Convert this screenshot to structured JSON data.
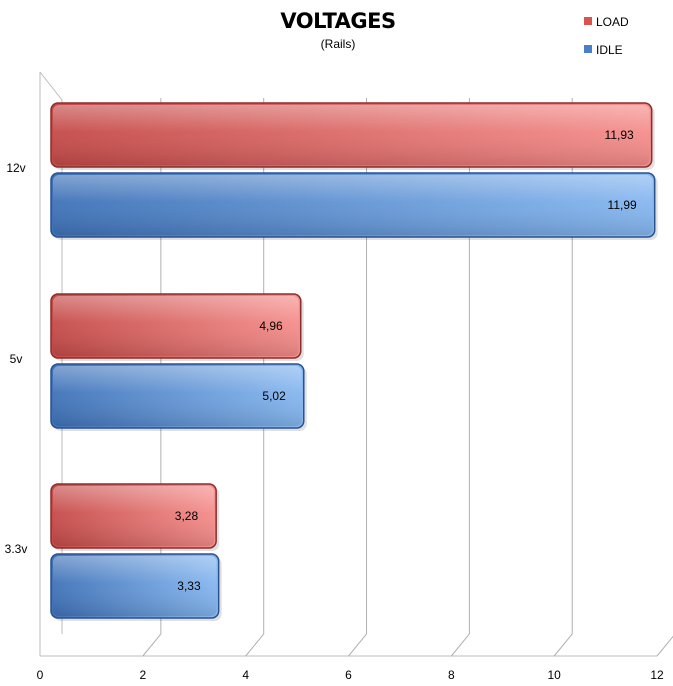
{
  "chart_data": {
    "type": "bar",
    "orientation": "horizontal",
    "title": "VOLTAGES",
    "subtitle": "(Rails)",
    "categories": [
      "12v",
      "5v",
      "3.3v"
    ],
    "series": [
      {
        "name": "LOAD",
        "color": "#d9534f",
        "values": [
          11.93,
          4.96,
          3.28
        ],
        "labels": [
          "11,93",
          "4,96",
          "3,28"
        ]
      },
      {
        "name": "IDLE",
        "color": "#4a7fc9",
        "values": [
          11.99,
          5.02,
          3.33
        ],
        "labels": [
          "11,99",
          "5,02",
          "3,33"
        ]
      }
    ],
    "xlim": [
      0,
      12
    ],
    "xticks": [
      "0",
      "2",
      "4",
      "6",
      "8",
      "10",
      "12"
    ],
    "grid": true,
    "legend_position": "top-right"
  }
}
